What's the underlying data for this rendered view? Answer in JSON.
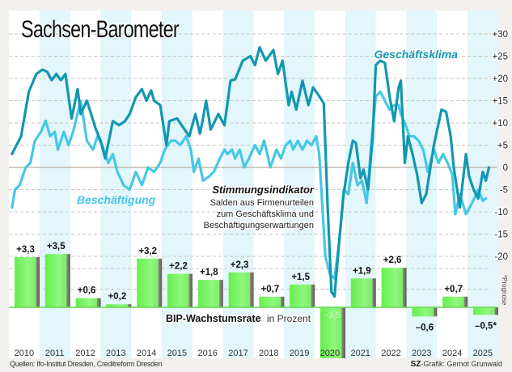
{
  "header": {
    "title": "Sachsen-Barometer"
  },
  "footer": {
    "sources": "Quellen: Ifo-Institut Dresden, Creditreform Dresden",
    "credit_brand": "SZ",
    "credit_text": "-Grafik: Gernot Grunwald"
  },
  "colors": {
    "geschaeftsklima": "#1297b0",
    "beschaeftigung": "#45c8e6",
    "bar_green": "#72f25c",
    "stripe": "#e2f6fb",
    "background": "#f1f0ec"
  },
  "chart_data": [
    {
      "type": "line",
      "title": "Stimmungsindikator",
      "subtitle": "Salden aus Firmenurteilen zum Geschäftsklima und Beschäftigungserwartungen",
      "xlabel": "",
      "ylabel": "",
      "ylim": [
        -20,
        30
      ],
      "yticks": [
        30,
        25,
        20,
        15,
        10,
        5,
        0,
        -5,
        -10,
        -15,
        -20
      ],
      "ytick_labels": [
        "+30",
        "+25",
        "+20",
        "+15",
        "+10",
        "+5",
        "0",
        "-5",
        "-10",
        "-15",
        "-20"
      ],
      "grid": true,
      "series": [
        {
          "name": "Geschäftsklima",
          "points": [
            [
              2010.1,
              3
            ],
            [
              2010.25,
              5
            ],
            [
              2010.4,
              7
            ],
            [
              2010.65,
              17
            ],
            [
              2010.9,
              21
            ],
            [
              2011.1,
              22
            ],
            [
              2011.25,
              21.5
            ],
            [
              2011.4,
              19.6
            ],
            [
              2011.55,
              21
            ],
            [
              2011.7,
              19.6
            ],
            [
              2011.85,
              21
            ],
            [
              2012.05,
              11
            ],
            [
              2012.25,
              17.6
            ],
            [
              2012.35,
              12
            ],
            [
              2012.55,
              15
            ],
            [
              2012.85,
              8.5
            ],
            [
              2013.0,
              6
            ],
            [
              2013.15,
              2
            ],
            [
              2013.3,
              7
            ],
            [
              2013.4,
              10.4
            ],
            [
              2013.6,
              9.5
            ],
            [
              2013.8,
              10.4
            ],
            [
              2013.95,
              12
            ],
            [
              2014.15,
              15.8
            ],
            [
              2014.35,
              17.6
            ],
            [
              2014.5,
              15
            ],
            [
              2014.65,
              17.3
            ],
            [
              2014.75,
              15
            ],
            [
              2014.95,
              14
            ],
            [
              2015.15,
              5
            ],
            [
              2015.25,
              10.4
            ],
            [
              2015.5,
              11
            ],
            [
              2015.75,
              8.5
            ],
            [
              2015.9,
              7
            ],
            [
              2016.1,
              12
            ],
            [
              2016.25,
              7.6
            ],
            [
              2016.35,
              11
            ],
            [
              2016.45,
              15
            ],
            [
              2016.6,
              8.5
            ],
            [
              2016.85,
              12
            ],
            [
              2017.05,
              9.5
            ],
            [
              2017.25,
              19.5
            ],
            [
              2017.4,
              19.8
            ],
            [
              2017.65,
              24
            ],
            [
              2017.9,
              25
            ],
            [
              2018.05,
              23
            ],
            [
              2018.2,
              27
            ],
            [
              2018.4,
              24
            ],
            [
              2018.65,
              26.4
            ],
            [
              2018.8,
              21
            ],
            [
              2018.95,
              24
            ],
            [
              2019.15,
              14
            ],
            [
              2019.25,
              17
            ],
            [
              2019.4,
              13
            ],
            [
              2019.6,
              19.5
            ],
            [
              2019.8,
              14
            ],
            [
              2019.95,
              18
            ],
            [
              2020.15,
              16
            ],
            [
              2020.3,
              14.4
            ],
            [
              2020.42,
              -8
            ],
            [
              2020.55,
              -28
            ],
            [
              2020.65,
              -29
            ],
            [
              2020.8,
              -17
            ],
            [
              2020.95,
              -6
            ],
            [
              2021.1,
              1
            ],
            [
              2021.25,
              6
            ],
            [
              2021.35,
              5.5
            ],
            [
              2021.5,
              -2.4
            ],
            [
              2021.6,
              -0.5
            ],
            [
              2021.75,
              -5
            ],
            [
              2021.9,
              7
            ],
            [
              2022.0,
              23
            ],
            [
              2022.15,
              24
            ],
            [
              2022.3,
              23.5
            ],
            [
              2022.45,
              16
            ],
            [
              2022.6,
              10.4
            ],
            [
              2022.75,
              18
            ],
            [
              2022.82,
              19.5
            ],
            [
              2022.95,
              1
            ],
            [
              2023.05,
              7
            ],
            [
              2023.2,
              3
            ],
            [
              2023.35,
              -1.5
            ],
            [
              2023.5,
              -8
            ],
            [
              2023.65,
              -6
            ],
            [
              2023.9,
              5
            ],
            [
              2024.15,
              13
            ],
            [
              2024.3,
              12.5
            ],
            [
              2024.45,
              7
            ],
            [
              2024.55,
              0
            ],
            [
              2024.75,
              -9
            ],
            [
              2024.95,
              3
            ],
            [
              2025.05,
              -2
            ],
            [
              2025.2,
              -5
            ],
            [
              2025.35,
              -7
            ],
            [
              2025.5,
              -1
            ],
            [
              2025.6,
              -3
            ],
            [
              2025.7,
              0
            ]
          ]
        },
        {
          "name": "Beschäftigung",
          "points": [
            [
              2010.1,
              -9
            ],
            [
              2010.2,
              -5
            ],
            [
              2010.35,
              -4
            ],
            [
              2010.55,
              0
            ],
            [
              2010.7,
              1
            ],
            [
              2010.85,
              6
            ],
            [
              2011.05,
              8
            ],
            [
              2011.2,
              10.5
            ],
            [
              2011.35,
              7
            ],
            [
              2011.5,
              8
            ],
            [
              2011.6,
              4
            ],
            [
              2011.8,
              8
            ],
            [
              2011.95,
              5
            ],
            [
              2012.1,
              8
            ],
            [
              2012.35,
              15
            ],
            [
              2012.55,
              6
            ],
            [
              2012.75,
              4
            ],
            [
              2012.9,
              7
            ],
            [
              2013.05,
              5
            ],
            [
              2013.25,
              1
            ],
            [
              2013.4,
              3
            ],
            [
              2013.55,
              -1
            ],
            [
              2013.75,
              -4
            ],
            [
              2013.95,
              -5
            ],
            [
              2014.15,
              -1
            ],
            [
              2014.35,
              -4
            ],
            [
              2014.55,
              0
            ],
            [
              2014.75,
              -1
            ],
            [
              2014.95,
              1
            ],
            [
              2015.1,
              4
            ],
            [
              2015.3,
              6
            ],
            [
              2015.45,
              6
            ],
            [
              2015.6,
              5
            ],
            [
              2015.8,
              7
            ],
            [
              2015.95,
              4
            ],
            [
              2016.05,
              -1
            ],
            [
              2016.2,
              2
            ],
            [
              2016.35,
              -3
            ],
            [
              2016.55,
              -2
            ],
            [
              2016.7,
              -1
            ],
            [
              2016.9,
              2
            ],
            [
              2017.05,
              4
            ],
            [
              2017.15,
              3
            ],
            [
              2017.3,
              4
            ],
            [
              2017.4,
              2
            ],
            [
              2017.55,
              4
            ],
            [
              2017.7,
              0
            ],
            [
              2017.85,
              2
            ],
            [
              2018.05,
              5
            ],
            [
              2018.2,
              3
            ],
            [
              2018.35,
              6
            ],
            [
              2018.55,
              0
            ],
            [
              2018.75,
              4
            ],
            [
              2018.9,
              2
            ],
            [
              2019.05,
              5
            ],
            [
              2019.2,
              6
            ],
            [
              2019.3,
              4
            ],
            [
              2019.45,
              6
            ],
            [
              2019.6,
              4
            ],
            [
              2019.75,
              6
            ],
            [
              2019.9,
              5
            ],
            [
              2020.05,
              7
            ],
            [
              2020.15,
              3
            ],
            [
              2020.35,
              -20
            ],
            [
              2020.5,
              -24
            ],
            [
              2020.65,
              -25
            ],
            [
              2020.8,
              -17
            ],
            [
              2020.95,
              -5
            ],
            [
              2021.1,
              -6
            ],
            [
              2021.25,
              1
            ],
            [
              2021.4,
              -4
            ],
            [
              2021.55,
              -3
            ],
            [
              2021.7,
              -8
            ],
            [
              2021.85,
              5
            ],
            [
              2022.0,
              16
            ],
            [
              2022.15,
              17
            ],
            [
              2022.3,
              15
            ],
            [
              2022.45,
              13
            ],
            [
              2022.6,
              14
            ],
            [
              2022.75,
              14
            ],
            [
              2022.82,
              12
            ],
            [
              2022.95,
              10
            ],
            [
              2023.1,
              7
            ],
            [
              2023.25,
              7
            ],
            [
              2023.4,
              6
            ],
            [
              2023.55,
              4
            ],
            [
              2023.7,
              -1
            ],
            [
              2023.9,
              4
            ],
            [
              2024.05,
              1
            ],
            [
              2024.2,
              3
            ],
            [
              2024.35,
              1
            ],
            [
              2024.5,
              -1.5
            ],
            [
              2024.6,
              -10.5
            ],
            [
              2024.75,
              -6
            ],
            [
              2024.95,
              -10.5
            ],
            [
              2025.15,
              -8
            ],
            [
              2025.35,
              -5
            ],
            [
              2025.5,
              -7.5
            ],
            [
              2025.6,
              -7
            ]
          ]
        }
      ],
      "labels": [
        {
          "text": "Geschäftsklima",
          "series": "Geschäftsklima"
        },
        {
          "text": "Beschäftigung",
          "series": "Beschäftigung"
        }
      ]
    },
    {
      "type": "bar",
      "title": "BIP-Wachstumsrate",
      "title_suffix": "in Prozent",
      "categories": [
        "2010",
        "2011",
        "2012",
        "2013",
        "2014",
        "2015",
        "2016",
        "2017",
        "2018",
        "2019",
        "2020",
        "2021",
        "2022",
        "2023",
        "2024",
        "2025"
      ],
      "values": [
        3.3,
        3.5,
        0.6,
        0.2,
        3.2,
        2.2,
        1.8,
        2.3,
        0.7,
        1.5,
        -3.5,
        1.9,
        2.6,
        -0.6,
        0.7,
        -0.5
      ],
      "value_labels": [
        "+3,3",
        "+3,5",
        "+0,6",
        "+0,2",
        "+3,2",
        "+2,2",
        "+1,8",
        "+2,3",
        "+0,7",
        "+1,5",
        "-3,5",
        "+1,9",
        "+2,6",
        "–0,6",
        "+0,7",
        "–0,5*"
      ],
      "forecast_note": "*Prognose",
      "xlabel": "",
      "ylabel": ""
    }
  ]
}
